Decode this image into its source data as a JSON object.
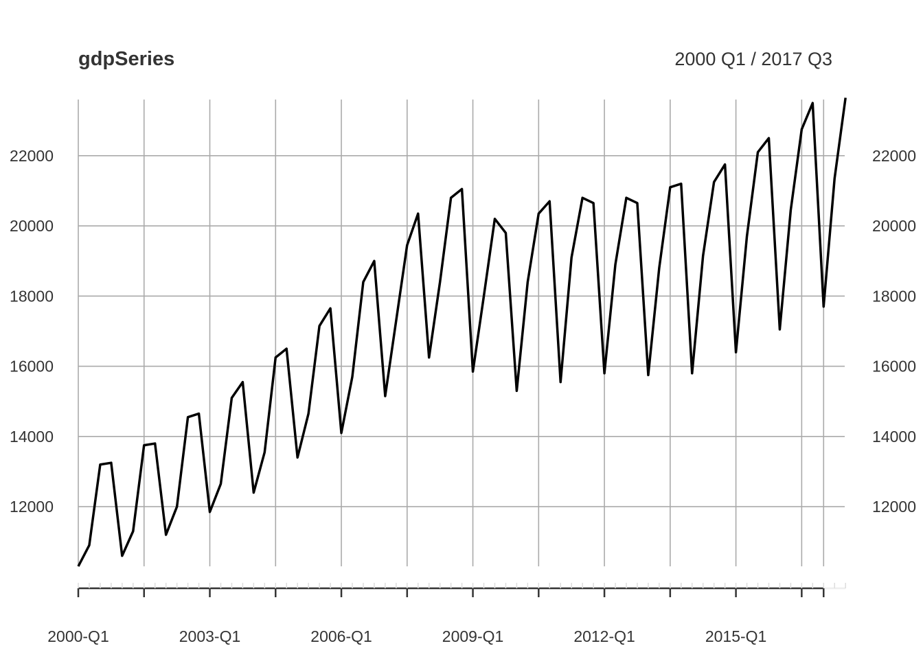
{
  "chart_data": {
    "type": "line",
    "title": "gdpSeries",
    "date_range": "2000 Q1 / 2017 Q3",
    "xlabel": "",
    "ylabel": "",
    "frequency": "quarterly",
    "start_year": 2000,
    "start_quarter": 1,
    "x_tick_labels": [
      "2000-Q1",
      "2003-Q1",
      "2006-Q1",
      "2009-Q1",
      "2012-Q1",
      "2015-Q1"
    ],
    "y_ticks": [
      12000,
      14000,
      16000,
      18000,
      20000,
      22000
    ],
    "ylim": [
      10300,
      23600
    ],
    "grid": true,
    "series": [
      {
        "values": [
          10300,
          10900,
          13200,
          13250,
          10600,
          11300,
          13750,
          13800,
          11200,
          12000,
          14550,
          14650,
          11850,
          12650,
          15100,
          15550,
          12400,
          13550,
          16250,
          16500,
          13400,
          14650,
          17150,
          17650,
          14100,
          15700,
          18400,
          19000,
          15150,
          17300,
          19450,
          20350,
          16250,
          18400,
          20800,
          21050,
          15850,
          18000,
          20200,
          19800,
          15300,
          18400,
          20350,
          20700,
          15550,
          19100,
          20800,
          20650,
          15800,
          18900,
          20800,
          20650,
          15750,
          18800,
          21100,
          21200,
          15800,
          19150,
          21250,
          21750,
          16400,
          19700,
          22100,
          22500,
          17050,
          20450,
          22750,
          23500,
          17700,
          21350,
          23650
        ]
      }
    ]
  }
}
